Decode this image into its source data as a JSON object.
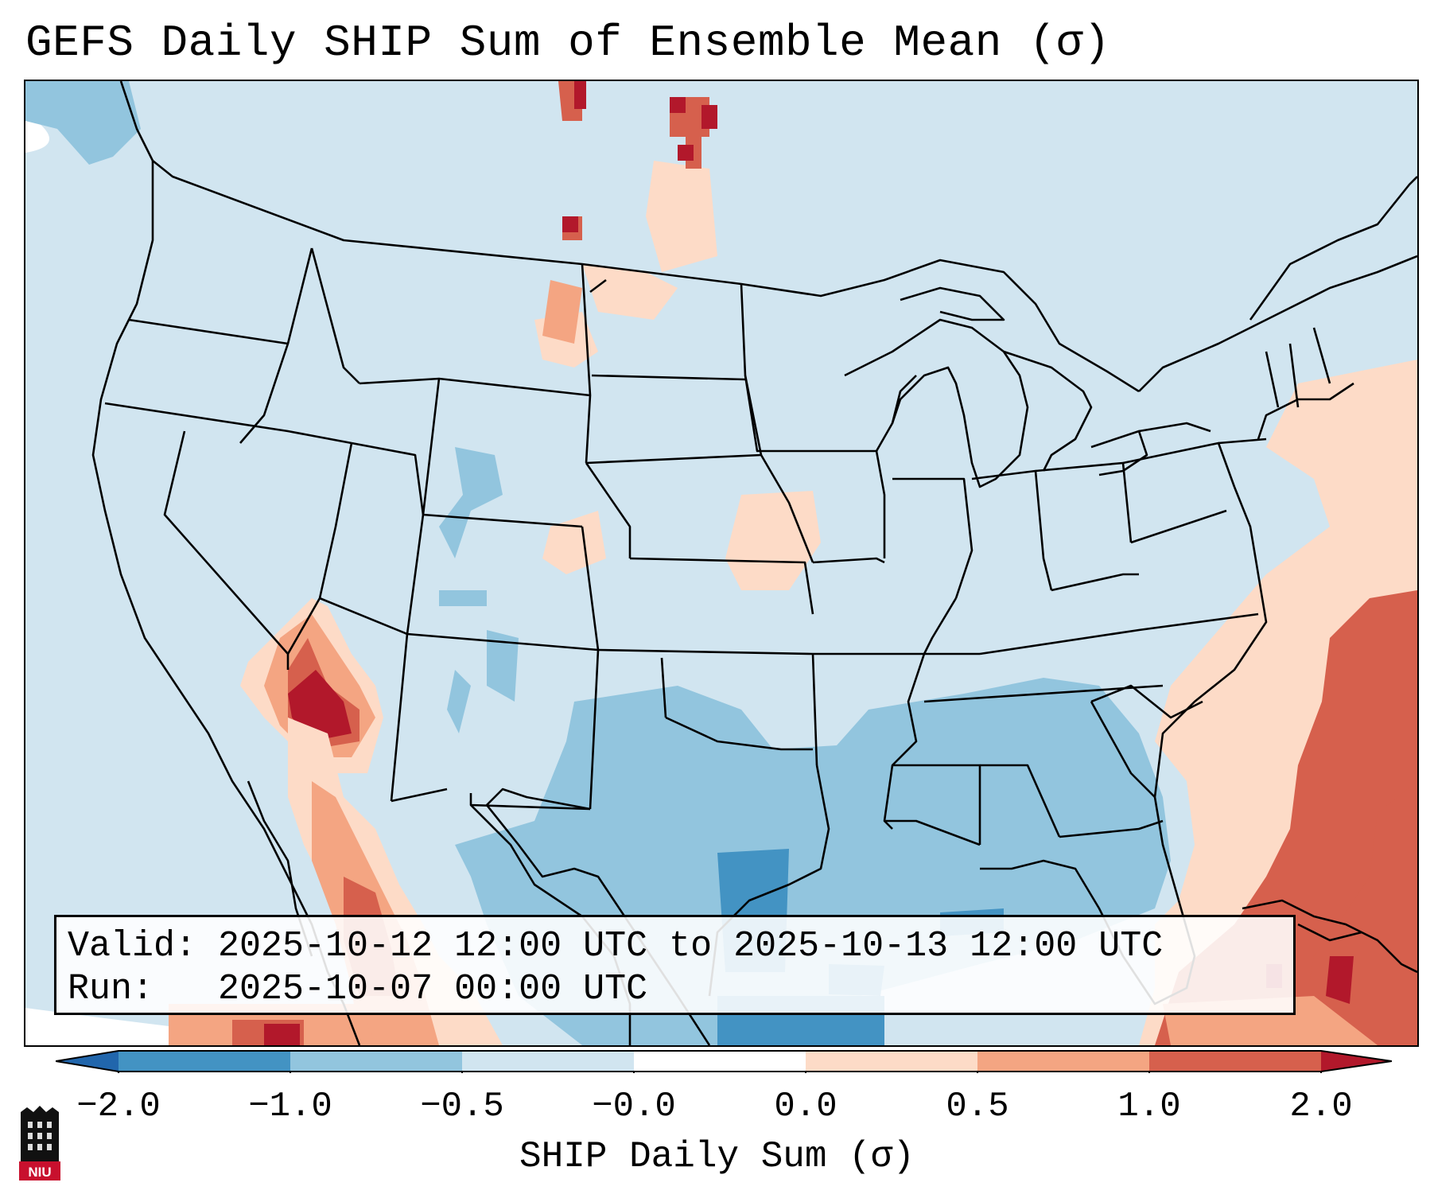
{
  "title": "GEFS Daily SHIP Sum of Ensemble Mean (σ)",
  "info": {
    "valid_line": "Valid: 2025-10-12 12:00 UTC to 2025-10-13 12:00 UTC",
    "run_line": "Run:   2025-10-07 00:00 UTC"
  },
  "colorbar": {
    "label": "SHIP Daily Sum (σ)",
    "ticks": [
      "−2.0",
      "−1.0",
      "−0.5",
      "−0.0",
      "0.0",
      "0.5",
      "1.0",
      "2.0"
    ],
    "bins": [
      {
        "from": "-inf",
        "to": -2.0,
        "color": "#2166ac"
      },
      {
        "from": -2.0,
        "to": -1.0,
        "color": "#4393c3"
      },
      {
        "from": -1.0,
        "to": -0.5,
        "color": "#92c5de"
      },
      {
        "from": -0.5,
        "to": 0.0,
        "color": "#d1e5f0"
      },
      {
        "from": 0.0,
        "to": 0.0,
        "color": "#ffffff"
      },
      {
        "from": 0.0,
        "to": 0.5,
        "color": "#fddbc7"
      },
      {
        "from": 0.5,
        "to": 1.0,
        "color": "#f4a582"
      },
      {
        "from": 1.0,
        "to": 2.0,
        "color": "#d6604d"
      },
      {
        "from": 2.0,
        "to": "inf",
        "color": "#b2182b"
      }
    ]
  },
  "logo": {
    "text": "NIU",
    "color": "#c8102e"
  },
  "colors": {
    "background_field": "#d1e5f0",
    "boundary": "#000000"
  }
}
